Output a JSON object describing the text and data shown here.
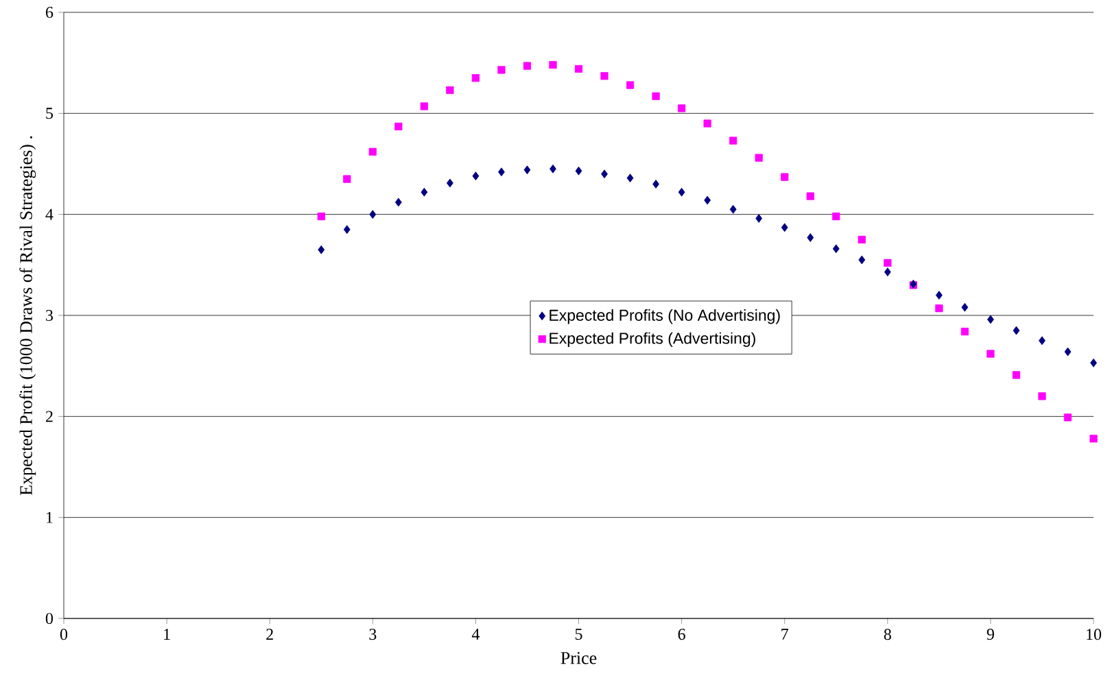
{
  "chart_data": {
    "type": "scatter",
    "xlabel": "Price",
    "ylabel": "Expected Profit (1000 Draws of Rival Strategies)  .",
    "x": [
      2.5,
      2.75,
      3.0,
      3.25,
      3.5,
      3.75,
      4.0,
      4.25,
      4.5,
      4.75,
      5.0,
      5.25,
      5.5,
      5.75,
      6.0,
      6.25,
      6.5,
      6.75,
      7.0,
      7.25,
      7.5,
      7.75,
      8.0,
      8.25,
      8.5,
      8.75,
      9.0,
      9.25,
      9.5,
      9.75,
      10.0
    ],
    "series": [
      {
        "name": "Expected Profits (No Advertising)",
        "color": "#000080",
        "marker": "diamond",
        "values": [
          3.65,
          3.85,
          4.0,
          4.12,
          4.22,
          4.31,
          4.38,
          4.42,
          4.44,
          4.45,
          4.43,
          4.4,
          4.36,
          4.3,
          4.22,
          4.14,
          4.05,
          3.96,
          3.87,
          3.77,
          3.66,
          3.55,
          3.43,
          3.31,
          3.2,
          3.08,
          2.96,
          2.85,
          2.75,
          2.64,
          2.53
        ]
      },
      {
        "name": "Expected Profits (Advertising)",
        "color": "#ff00ff",
        "marker": "square",
        "values": [
          3.98,
          4.35,
          4.62,
          4.87,
          5.07,
          5.23,
          5.35,
          5.43,
          5.47,
          5.48,
          5.44,
          5.37,
          5.28,
          5.17,
          5.05,
          4.9,
          4.73,
          4.56,
          4.37,
          4.18,
          3.98,
          3.75,
          3.52,
          3.3,
          3.07,
          2.84,
          2.62,
          2.41,
          2.2,
          1.99,
          1.78
        ]
      }
    ],
    "xlim": [
      0,
      10
    ],
    "xticks": [
      0,
      1,
      2,
      3,
      4,
      5,
      6,
      7,
      8,
      9,
      10
    ],
    "ylim": [
      0,
      6
    ],
    "yticks": [
      0,
      1,
      2,
      3,
      4,
      5,
      6
    ],
    "grid": "y",
    "legend": "center"
  }
}
